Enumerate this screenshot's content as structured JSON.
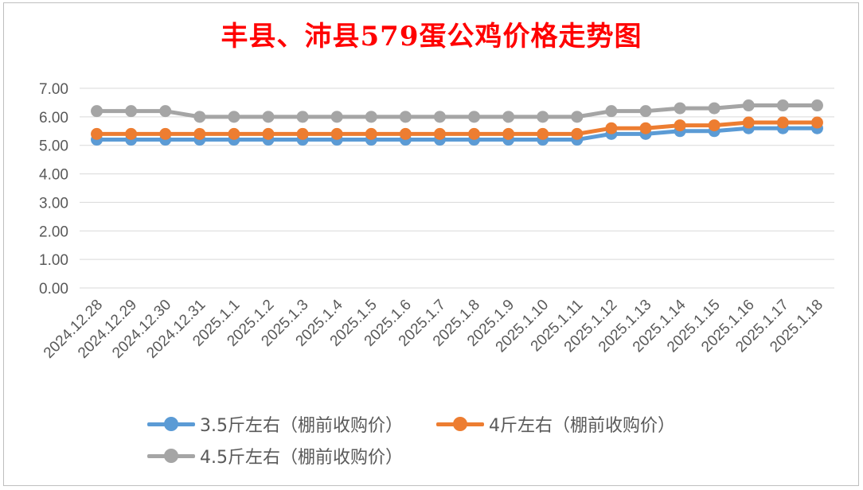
{
  "chart_data": {
    "type": "line",
    "title": "丰县、沛县579蛋公鸡价格走势图",
    "categories": [
      "2024.12.28",
      "2024.12.29",
      "2024.12.30",
      "2024.12.31",
      "2025.1.1",
      "2025.1.2",
      "2025.1.3",
      "2025.1.4",
      "2025.1.5",
      "2025.1.6",
      "2025.1.7",
      "2025.1.8",
      "2025.1.9",
      "2025.1.10",
      "2025.1.11",
      "2025.1.12",
      "2025.1.13",
      "2025.1.14",
      "2025.1.15",
      "2025.1.16",
      "2025.1.17",
      "2025.1.18"
    ],
    "y_ticks": [
      "0.00",
      "1.00",
      "2.00",
      "3.00",
      "4.00",
      "5.00",
      "6.00",
      "7.00"
    ],
    "ylim": [
      0,
      7
    ],
    "grid": true,
    "legend_position": "bottom",
    "series": [
      {
        "name": "3.5斤左右（棚前收购价）",
        "color": "#5b9bd5",
        "values": [
          5.2,
          5.2,
          5.2,
          5.2,
          5.2,
          5.2,
          5.2,
          5.2,
          5.2,
          5.2,
          5.2,
          5.2,
          5.2,
          5.2,
          5.2,
          5.4,
          5.4,
          5.5,
          5.5,
          5.6,
          5.6,
          5.6
        ]
      },
      {
        "name": "4斤左右（棚前收购价）",
        "color": "#ed7d31",
        "values": [
          5.4,
          5.4,
          5.4,
          5.4,
          5.4,
          5.4,
          5.4,
          5.4,
          5.4,
          5.4,
          5.4,
          5.4,
          5.4,
          5.4,
          5.4,
          5.6,
          5.6,
          5.7,
          5.7,
          5.8,
          5.8,
          5.8
        ]
      },
      {
        "name": "4.5斤左右（棚前收购价）",
        "color": "#a5a5a5",
        "values": [
          6.2,
          6.2,
          6.2,
          6.0,
          6.0,
          6.0,
          6.0,
          6.0,
          6.0,
          6.0,
          6.0,
          6.0,
          6.0,
          6.0,
          6.0,
          6.2,
          6.2,
          6.3,
          6.3,
          6.4,
          6.4,
          6.4
        ]
      }
    ]
  }
}
